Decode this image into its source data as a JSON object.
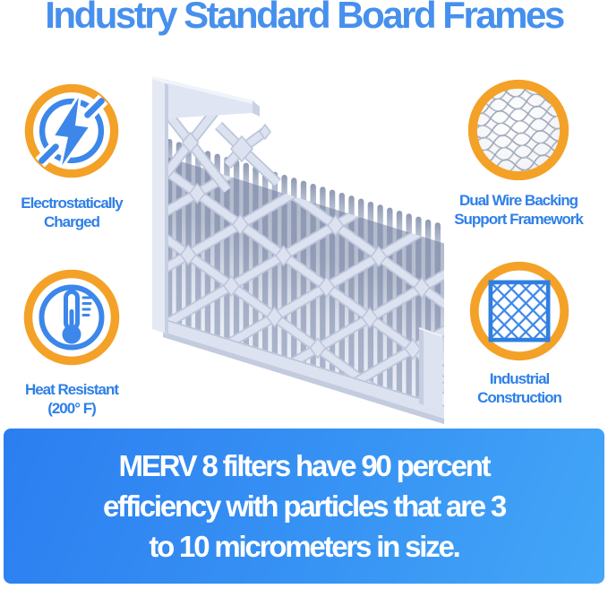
{
  "title": "Industry Standard Board Frames",
  "colors": {
    "accent_orange": "#F4A128",
    "accent_blue": "#3C87E9",
    "title_blue": "#4690EE",
    "label_blue": "#2E80E8",
    "banner_gradient_start": "#2C7EF0",
    "banner_gradient_end": "#43A6F7",
    "banner_text": "#FFFFFF"
  },
  "features": [
    {
      "id": "electrostatic",
      "icon": "lightning-icon",
      "label_lines": [
        "Electrostatically",
        "Charged"
      ]
    },
    {
      "id": "wire-backing",
      "icon": "wire-mesh-icon",
      "label_lines": [
        "Dual Wire Backing",
        "Support Framework"
      ]
    },
    {
      "id": "heat-resistant",
      "icon": "thermometer-icon",
      "label_lines": [
        "Heat Resistant",
        "(200° F)"
      ]
    },
    {
      "id": "industrial",
      "icon": "lattice-square-icon",
      "label_lines": [
        "Industrial",
        "Construction"
      ]
    }
  ],
  "illustration": {
    "name": "pleated-air-filter-with-board-frame"
  },
  "banner": {
    "lines": [
      "MERV 8 filters have 90 percent",
      "efficiency with particles that are 3",
      "to 10 micrometers in size."
    ]
  }
}
